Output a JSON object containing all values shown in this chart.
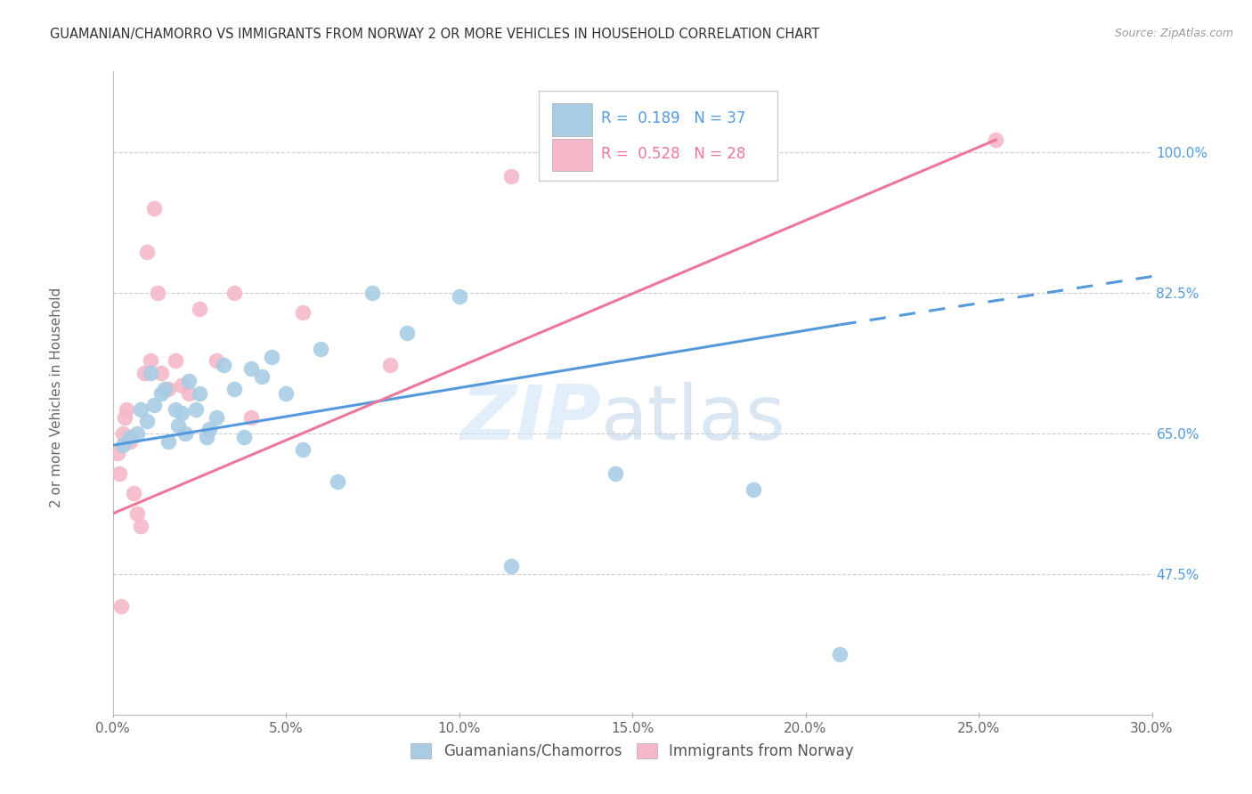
{
  "title": "GUAMANIAN/CHAMORRO VS IMMIGRANTS FROM NORWAY 2 OR MORE VEHICLES IN HOUSEHOLD CORRELATION CHART",
  "source": "Source: ZipAtlas.com",
  "ylabel": "2 or more Vehicles in Household",
  "xlim": [
    0.0,
    30.0
  ],
  "ylim": [
    30.0,
    110.0
  ],
  "yticks": [
    47.5,
    65.0,
    82.5,
    100.0
  ],
  "xticks": [
    0.0,
    5.0,
    10.0,
    15.0,
    20.0,
    25.0,
    30.0
  ],
  "blue_r": 0.189,
  "blue_n": 37,
  "pink_r": 0.528,
  "pink_n": 28,
  "blue_color": "#a8cce4",
  "pink_color": "#f4b8c8",
  "blue_line_color": "#5599dd",
  "pink_line_color": "#ee7799",
  "watermark_zip": "ZIP",
  "watermark_atlas": "atlas",
  "blue_scatter_x": [
    0.3,
    0.5,
    0.7,
    0.8,
    1.0,
    1.1,
    1.2,
    1.4,
    1.5,
    1.6,
    1.8,
    1.9,
    2.0,
    2.1,
    2.2,
    2.4,
    2.5,
    2.7,
    2.8,
    3.0,
    3.2,
    3.5,
    3.8,
    4.0,
    4.3,
    4.6,
    5.0,
    5.5,
    6.0,
    6.5,
    7.5,
    8.5,
    10.0,
    11.5,
    14.5,
    18.5,
    21.0
  ],
  "blue_scatter_y": [
    63.5,
    64.5,
    65.0,
    68.0,
    66.5,
    72.5,
    68.5,
    70.0,
    70.5,
    64.0,
    68.0,
    66.0,
    67.5,
    65.0,
    71.5,
    68.0,
    70.0,
    64.5,
    65.5,
    67.0,
    73.5,
    70.5,
    64.5,
    73.0,
    72.0,
    74.5,
    70.0,
    63.0,
    75.5,
    59.0,
    82.5,
    77.5,
    82.0,
    48.5,
    60.0,
    58.0,
    37.5
  ],
  "pink_scatter_x": [
    0.2,
    0.3,
    0.4,
    0.5,
    0.6,
    0.7,
    0.8,
    0.9,
    1.0,
    1.1,
    1.2,
    1.3,
    1.4,
    1.6,
    1.8,
    2.0,
    2.2,
    2.5,
    3.0,
    3.5,
    4.0,
    5.5,
    8.0,
    11.5,
    25.5,
    0.15,
    0.25,
    0.35
  ],
  "pink_scatter_y": [
    60.0,
    65.0,
    68.0,
    64.0,
    57.5,
    55.0,
    53.5,
    72.5,
    87.5,
    74.0,
    93.0,
    82.5,
    72.5,
    70.5,
    74.0,
    71.0,
    70.0,
    80.5,
    74.0,
    82.5,
    67.0,
    80.0,
    73.5,
    97.0,
    101.5,
    62.5,
    43.5,
    67.0
  ],
  "blue_line_x0": 0.0,
  "blue_line_y0": 63.5,
  "blue_line_x1": 21.0,
  "blue_line_y1": 78.5,
  "blue_dash_x0": 21.0,
  "blue_dash_y0": 78.5,
  "blue_dash_x1": 30.0,
  "blue_dash_y1": 84.5,
  "pink_line_x0": 0.0,
  "pink_line_y0": 55.0,
  "pink_line_x1": 25.5,
  "pink_line_y1": 101.5
}
